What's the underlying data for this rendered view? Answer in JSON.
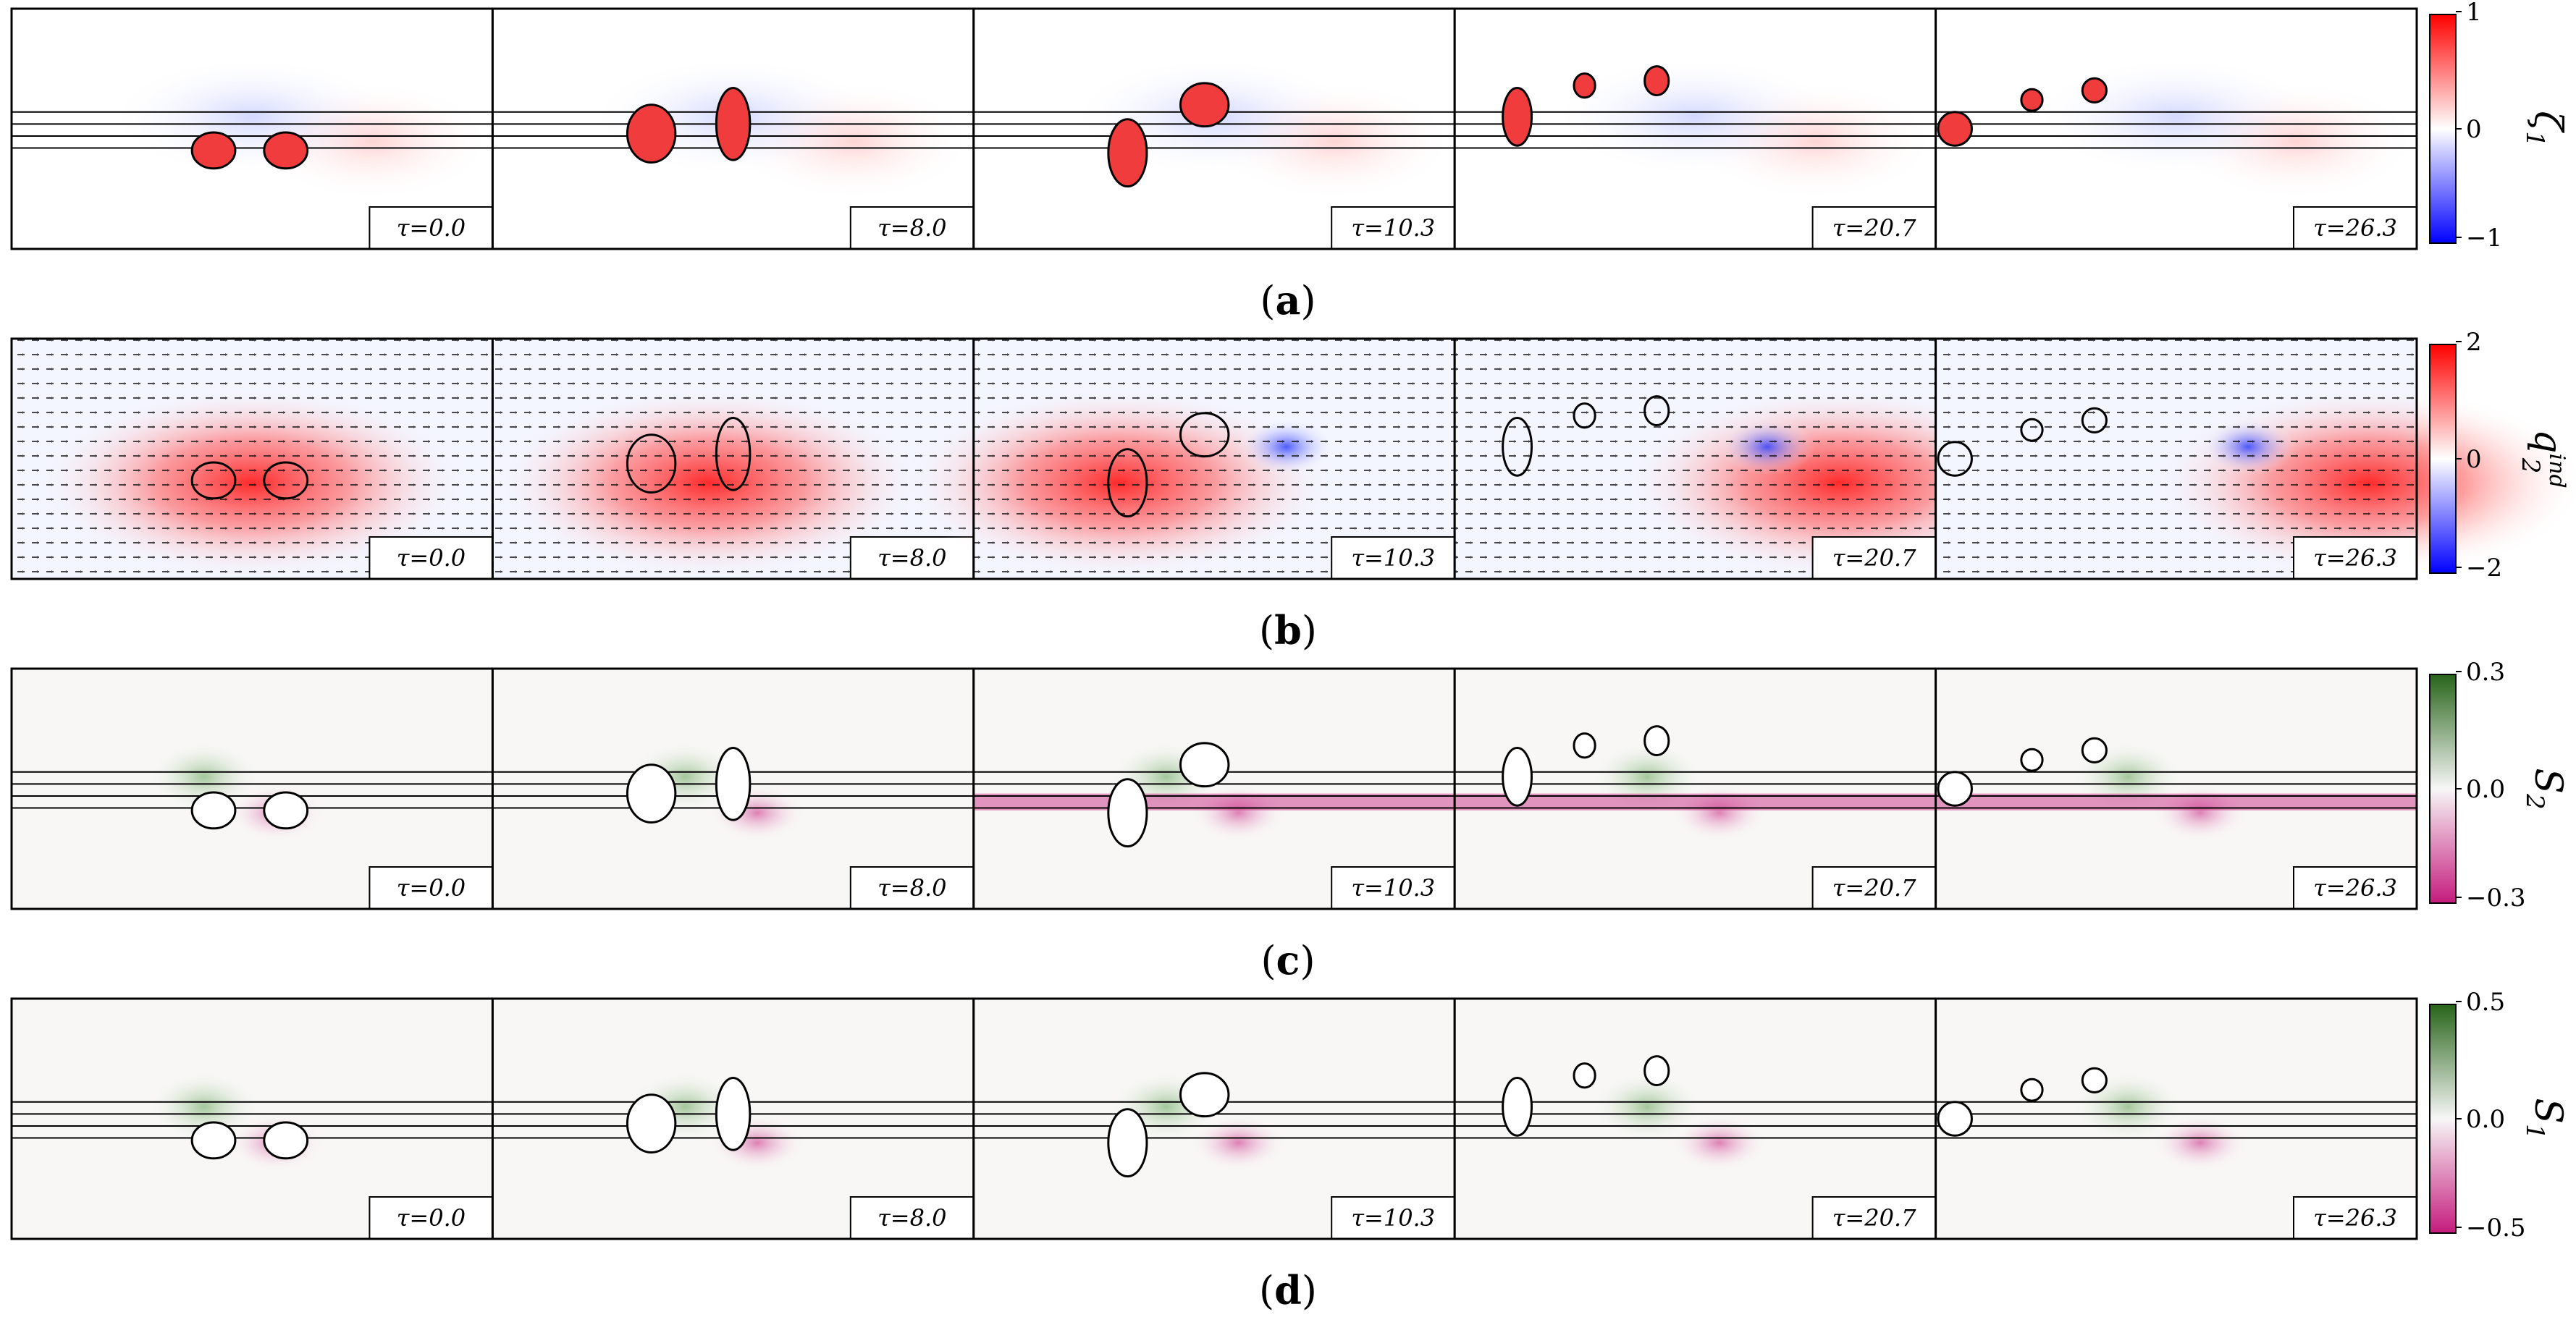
{
  "time_labels": [
    "τ=0.0",
    "τ=8.0",
    "τ=10.3",
    "τ=20.7",
    "τ=26.3"
  ],
  "rows": [
    {
      "id": "a",
      "label_open": "(",
      "label_letter": "a",
      "label_close": ")",
      "colorbar": {
        "name": "ζ",
        "sub": "1",
        "sup": "",
        "ticks": [
          "1",
          "0",
          "−1"
        ],
        "top_color": "#ff0000",
        "mid_color": "#ffffff",
        "bottom_color": "#0000ff"
      }
    },
    {
      "id": "b",
      "label_open": "(",
      "label_letter": "b",
      "label_close": ")",
      "colorbar": {
        "name": "q",
        "sub": "2",
        "sup": "ind",
        "ticks": [
          "2",
          "0",
          "−2"
        ],
        "top_color": "#ff0000",
        "mid_color": "#ffffff",
        "bottom_color": "#0000ff"
      }
    },
    {
      "id": "c",
      "label_open": "(",
      "label_letter": "c",
      "label_close": ")",
      "colorbar": {
        "name": "S",
        "sub": "2",
        "sup": "",
        "ticks": [
          "0.3",
          "0.0",
          "−0.3"
        ],
        "top_color": "#276419",
        "mid_color": "#f7f7f7",
        "bottom_color": "#c51b7d"
      }
    },
    {
      "id": "d",
      "label_open": "(",
      "label_letter": "d",
      "label_close": ")",
      "colorbar": {
        "name": "S",
        "sub": "1",
        "sup": "",
        "ticks": [
          "0.5",
          "0.0",
          "−0.5"
        ],
        "top_color": "#276419",
        "mid_color": "#f7f7f7",
        "bottom_color": "#c51b7d"
      }
    }
  ]
}
